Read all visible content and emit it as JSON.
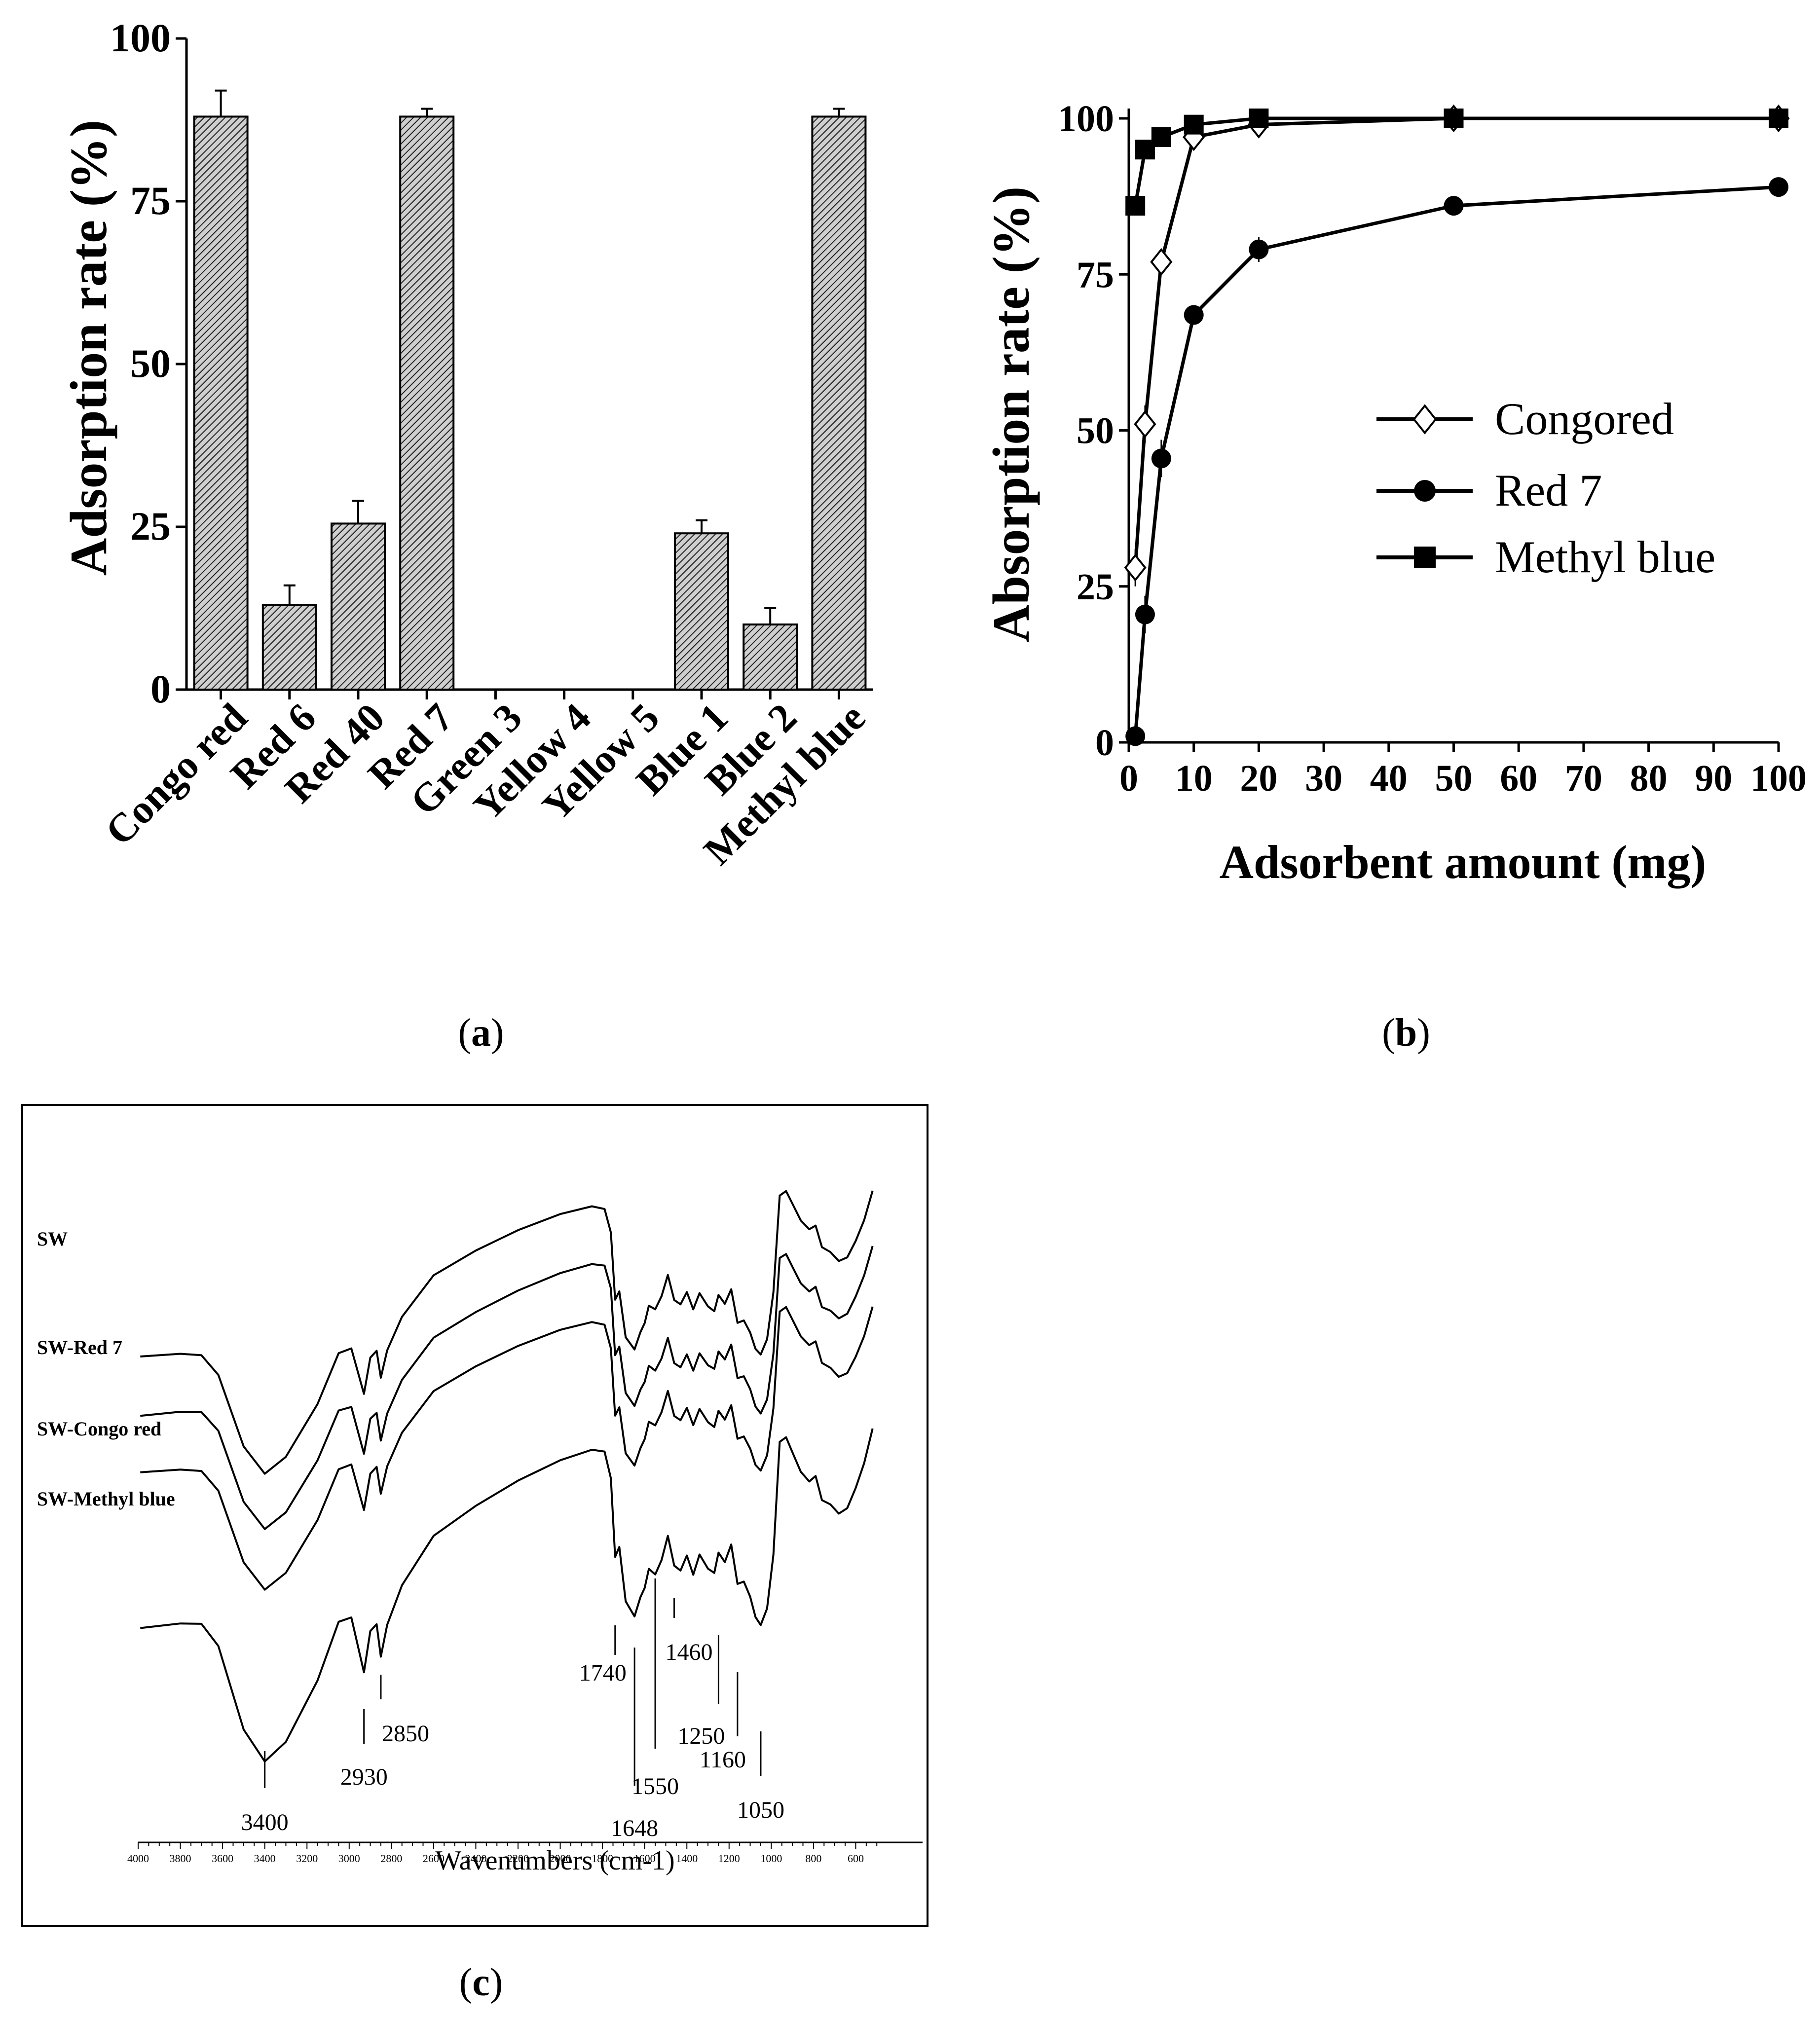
{
  "panel_labels": {
    "a": "a",
    "b": "b",
    "c": "c"
  },
  "chart_data": [
    {
      "id": "a",
      "type": "bar",
      "ylabel": "Adsorption rate (%)",
      "ylim": [
        0,
        100
      ],
      "yticks": [
        0,
        25,
        50,
        75,
        100
      ],
      "categories": [
        "Congo red",
        "Red 6",
        "Red 40",
        "Red 7",
        "Green 3",
        "Yellow 4",
        "Yellow 5",
        "Blue 1",
        "Blue 2",
        "Methyl blue"
      ],
      "values": [
        88,
        13,
        25.5,
        88,
        0,
        0,
        0,
        24,
        10,
        88
      ],
      "errors": [
        4,
        3,
        3.5,
        1.2,
        0,
        0,
        0,
        2,
        2.5,
        1.2
      ]
    },
    {
      "id": "b",
      "type": "line",
      "xlabel": "Adsorbent amount (mg)",
      "ylabel": "Absorption rate (%)",
      "xlim": [
        0,
        100
      ],
      "ylim": [
        0,
        100
      ],
      "xticks": [
        0,
        10,
        20,
        30,
        40,
        50,
        60,
        70,
        80,
        90,
        100
      ],
      "yticks": [
        0,
        25,
        50,
        75,
        100
      ],
      "series": [
        {
          "name": "Congored",
          "marker": "diamond-open",
          "x": [
            1,
            2.5,
            5,
            10,
            20,
            50,
            100
          ],
          "y": [
            28,
            51,
            77,
            97,
            99,
            100,
            100
          ],
          "err": [
            3,
            3,
            2,
            1,
            1,
            1,
            1
          ]
        },
        {
          "name": "Red 7",
          "marker": "circle-filled",
          "x": [
            1,
            2.5,
            5,
            10,
            20,
            50,
            100
          ],
          "y": [
            1,
            20.5,
            45.5,
            68.5,
            79,
            86,
            89
          ],
          "err": [
            1,
            3,
            3,
            1.5,
            2,
            1.5,
            1
          ]
        },
        {
          "name": "Methyl blue",
          "marker": "square-filled",
          "x": [
            1,
            2.5,
            5,
            10,
            20,
            50,
            100
          ],
          "y": [
            86,
            95,
            97,
            99,
            100,
            100,
            100
          ],
          "err": [
            1,
            1,
            1,
            1,
            0.5,
            0.5,
            0.5
          ]
        }
      ]
    },
    {
      "id": "c",
      "type": "line",
      "xlabel": "Wavenumbers (cm-1)",
      "xlim": [
        4000,
        400
      ],
      "xticks": [
        4000,
        3800,
        3600,
        3400,
        3200,
        3000,
        2800,
        2600,
        2400,
        2200,
        2000,
        1800,
        1600,
        1400,
        1200,
        1000,
        800,
        600
      ],
      "series": [
        {
          "name": "SW"
        },
        {
          "name": "SW-Red 7"
        },
        {
          "name": "SW-Congo red"
        },
        {
          "name": "SW-Methyl blue"
        }
      ],
      "annotations": [
        {
          "label": "3400",
          "wavenumber": 3400
        },
        {
          "label": "2930",
          "wavenumber": 2930
        },
        {
          "label": "2850",
          "wavenumber": 2850
        },
        {
          "label": "1740",
          "wavenumber": 1740
        },
        {
          "label": "1648",
          "wavenumber": 1648
        },
        {
          "label": "1550",
          "wavenumber": 1550
        },
        {
          "label": "1460",
          "wavenumber": 1460
        },
        {
          "label": "1250",
          "wavenumber": 1250
        },
        {
          "label": "1160",
          "wavenumber": 1160
        },
        {
          "label": "1050",
          "wavenumber": 1050
        }
      ]
    }
  ]
}
